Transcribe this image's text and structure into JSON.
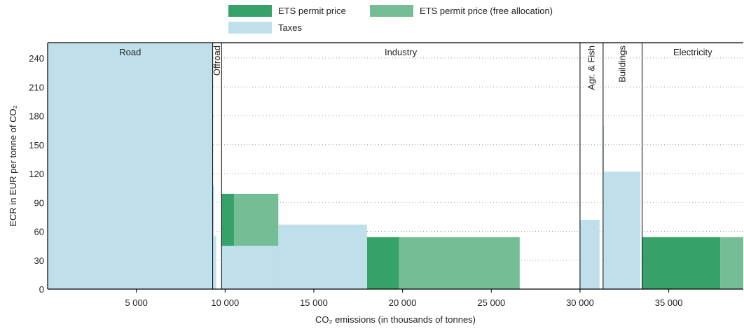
{
  "chart_data": {
    "type": "bar",
    "subtype": "variable-width stacked bars",
    "xlabel": "CO₂ emissions (in thousands of tonnes)",
    "ylabel": "ECR in EUR per tonne of CO₂",
    "xlim": [
      0,
      39200
    ],
    "ylim": [
      0,
      256
    ],
    "x_ticks": [
      5000,
      10000,
      15000,
      20000,
      25000,
      30000,
      35000
    ],
    "x_tick_labels": [
      "5 000",
      "10 000",
      "15 000",
      "20 000",
      "25 000",
      "30 000",
      "35 000"
    ],
    "y_ticks": [
      0,
      30,
      60,
      90,
      120,
      150,
      180,
      210,
      240
    ],
    "y_tick_labels": [
      "0",
      "30",
      "60",
      "90",
      "120",
      "150",
      "180",
      "210",
      "240"
    ],
    "grid": "horizontal dotted",
    "legend_position": "top",
    "legend": [
      {
        "key": "ets",
        "label": "ETS permit price",
        "color": "#36a269"
      },
      {
        "key": "ets_free",
        "label": "ETS permit price (free allocation)",
        "color": "#75be95"
      },
      {
        "key": "taxes",
        "label": "Taxes",
        "color": "#bfe0ea"
      }
    ],
    "sectors": [
      {
        "name": "Road",
        "label": "Road",
        "x_start": 0,
        "x_end": 9300,
        "vertical": false
      },
      {
        "name": "Offroad",
        "label": "Offroad",
        "x_start": 9300,
        "x_end": 9800,
        "vertical": true
      },
      {
        "name": "Industry",
        "label": "Industry",
        "x_start": 9800,
        "x_end": 30000,
        "vertical": false
      },
      {
        "name": "Agr. & Fish",
        "label": "Agr. & Fish",
        "x_start": 30000,
        "x_end": 31300,
        "vertical": true
      },
      {
        "name": "Buildings",
        "label": "Buildings",
        "x_start": 31300,
        "x_end": 33500,
        "vertical": true
      },
      {
        "name": "Electricity",
        "label": "Electricity",
        "x_start": 33500,
        "x_end": 39200,
        "vertical": false
      }
    ],
    "blocks": [
      {
        "x_start": 0,
        "x_end": 9300,
        "taxes": 255,
        "ets": 0,
        "ets_free": 0
      },
      {
        "x_start": 9300,
        "x_end": 9380,
        "taxes": 107,
        "ets": 0,
        "ets_free": 0
      },
      {
        "x_start": 9380,
        "x_end": 9500,
        "taxes": 55,
        "ets": 0,
        "ets_free": 0
      },
      {
        "x_start": 9800,
        "x_end": 10500,
        "taxes": 0,
        "ets": 99,
        "ets_free": 0
      },
      {
        "x_start": 10500,
        "x_end": 13000,
        "taxes": 0,
        "ets": 0,
        "ets_free": 99
      },
      {
        "x_start": 9800,
        "x_end": 13000,
        "taxes": 45,
        "ets": 0,
        "ets_free": 0
      },
      {
        "x_start": 13000,
        "x_end": 18000,
        "taxes": 67,
        "ets": 0,
        "ets_free": 0
      },
      {
        "x_start": 18000,
        "x_end": 19800,
        "taxes": 0,
        "ets": 54,
        "ets_free": 0
      },
      {
        "x_start": 19800,
        "x_end": 26600,
        "taxes": 0,
        "ets": 0,
        "ets_free": 54
      },
      {
        "x_start": 30000,
        "x_end": 31100,
        "taxes": 72,
        "ets": 0,
        "ets_free": 0
      },
      {
        "x_start": 31300,
        "x_end": 31350,
        "taxes": 170,
        "ets": 0,
        "ets_free": 0
      },
      {
        "x_start": 31350,
        "x_end": 33400,
        "taxes": 122,
        "ets": 0,
        "ets_free": 0
      },
      {
        "x_start": 33500,
        "x_end": 37900,
        "taxes": 0,
        "ets": 54,
        "ets_free": 0
      },
      {
        "x_start": 37900,
        "x_end": 39200,
        "taxes": 0,
        "ets": 0,
        "ets_free": 54
      }
    ]
  }
}
